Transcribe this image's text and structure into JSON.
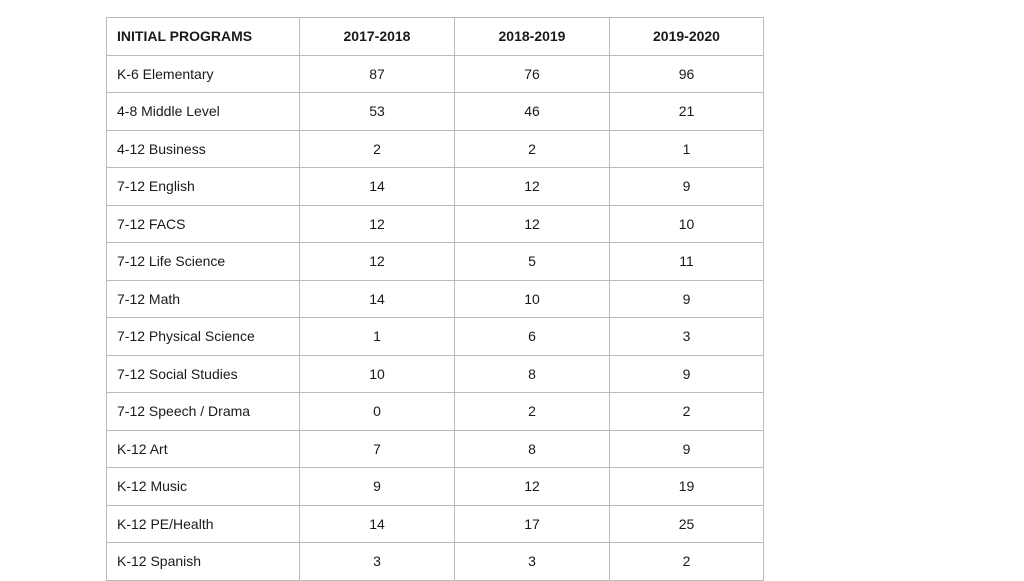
{
  "table": {
    "headers": [
      "INITIAL PROGRAMS",
      "2017-2018",
      "2018-2019",
      "2019-2020"
    ],
    "rows": [
      [
        "K-6 Elementary",
        "87",
        "76",
        "96"
      ],
      [
        "4-8 Middle Level",
        "53",
        "46",
        "21"
      ],
      [
        "4-12 Business",
        "2",
        "2",
        "1"
      ],
      [
        "7-12 English",
        "14",
        "12",
        "9"
      ],
      [
        "7-12 FACS",
        "12",
        "12",
        "10"
      ],
      [
        "7-12 Life Science",
        "12",
        "5",
        "11"
      ],
      [
        "7-12 Math",
        "14",
        "10",
        "9"
      ],
      [
        "7-12 Physical Science",
        "1",
        "6",
        "3"
      ],
      [
        "7-12 Social Studies",
        "10",
        "8",
        "9"
      ],
      [
        "7-12 Speech / Drama",
        "0",
        "2",
        "2"
      ],
      [
        "K-12 Art",
        "7",
        "8",
        "9"
      ],
      [
        "K-12 Music",
        "9",
        "12",
        "19"
      ],
      [
        "K-12 PE/Health",
        "14",
        "17",
        "25"
      ],
      [
        "K-12 Spanish",
        "3",
        "3",
        "2"
      ]
    ]
  }
}
